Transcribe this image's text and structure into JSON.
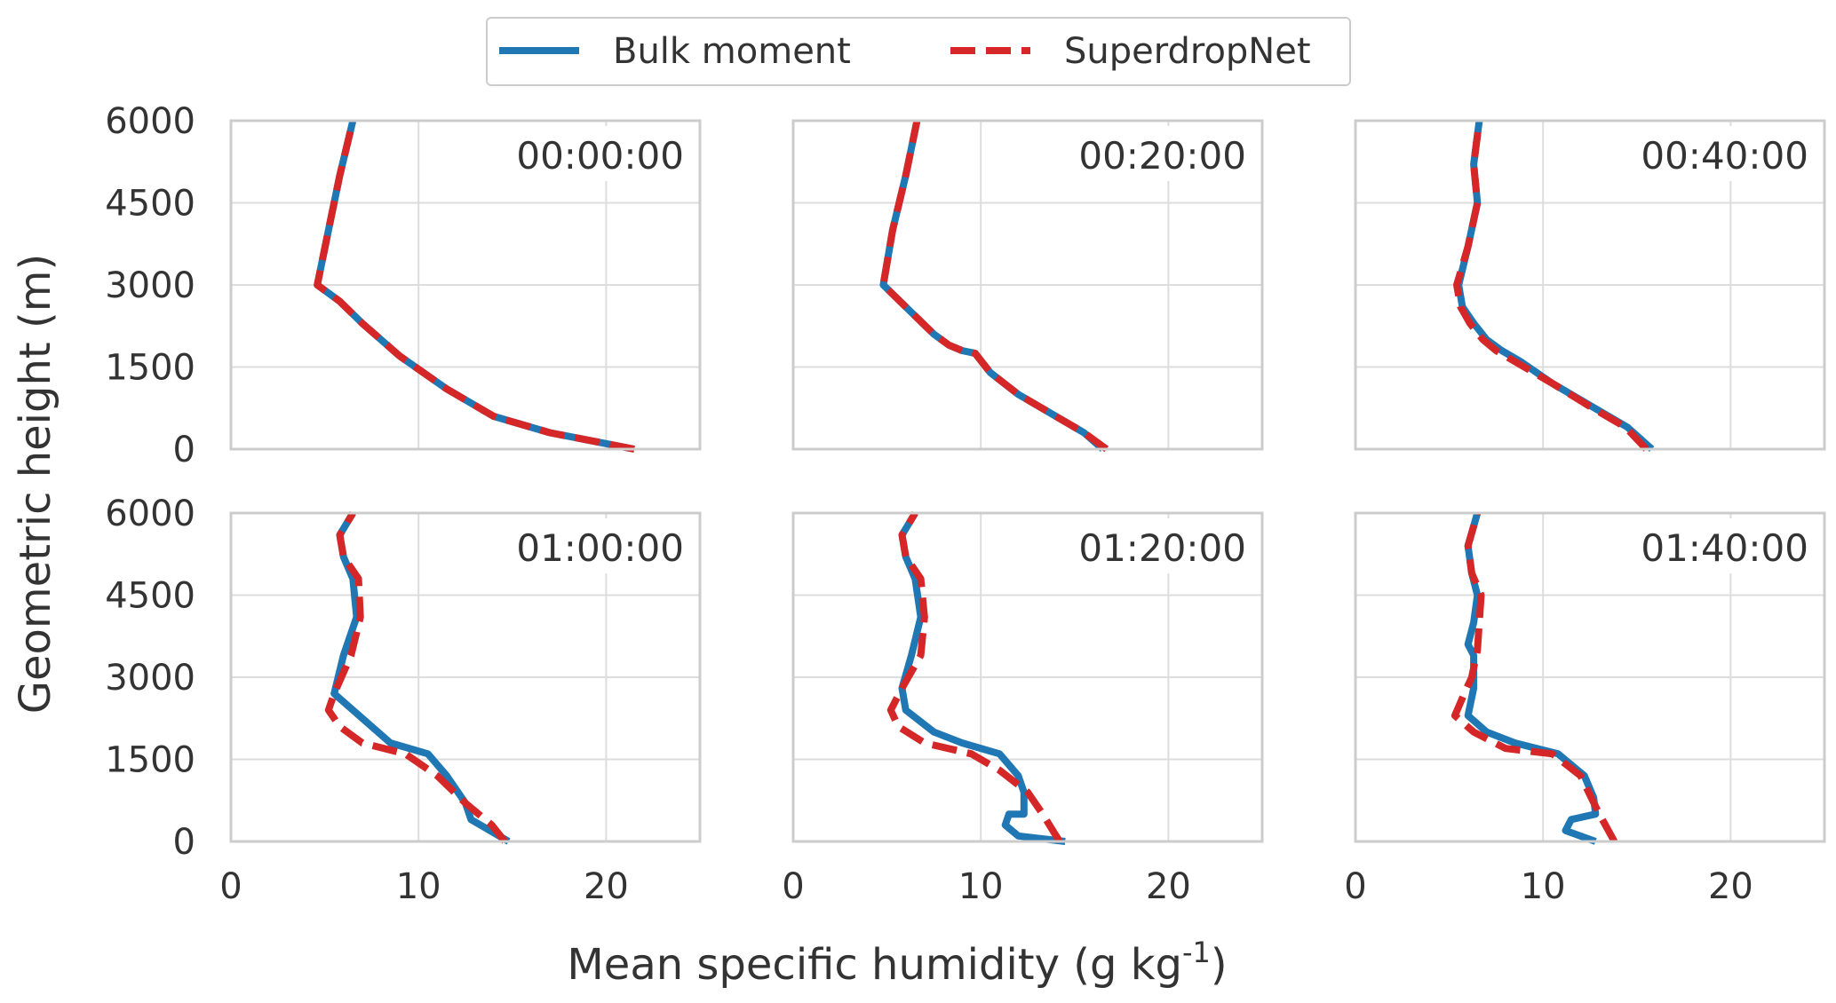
{
  "legend": {
    "placement": "top-center",
    "entries": [
      {
        "name": "Bulk moment",
        "color": "#1f77b4",
        "dash": "solid"
      },
      {
        "name": "SuperdropNet",
        "color": "#d62728",
        "dash": "dashed"
      }
    ]
  },
  "axes_text": {
    "ylabel": "Geometric height (m)",
    "xlabel_main": "Mean specific humidity (g kg",
    "xlabel_sup": "-1",
    "xlabel_close": ")"
  },
  "chart_data": {
    "type": "line",
    "layout": {
      "rows": 2,
      "cols": 3,
      "sharex": true,
      "sharey": true
    },
    "xlim": [
      0,
      25
    ],
    "ylim": [
      0,
      6000
    ],
    "xticks": [
      0,
      10,
      20
    ],
    "xtick_labels": [
      "0",
      "10",
      "20"
    ],
    "yticks": [
      0,
      1500,
      3000,
      4500,
      6000
    ],
    "ytick_labels": [
      "0",
      "1500",
      "3000",
      "4500",
      "6000"
    ],
    "grid": true,
    "panels": [
      {
        "title": "00:00:00",
        "series": [
          {
            "name": "Bulk moment",
            "points": [
              [
                21.5,
                0
              ],
              [
                20,
                100
              ],
              [
                17,
                300
              ],
              [
                14,
                600
              ],
              [
                11.5,
                1100
              ],
              [
                9,
                1700
              ],
              [
                7,
                2300
              ],
              [
                5.8,
                2700
              ],
              [
                4.6,
                3000
              ],
              [
                5.2,
                4000
              ],
              [
                5.8,
                5000
              ],
              [
                6.5,
                6000
              ]
            ]
          },
          {
            "name": "SuperdropNet",
            "points": [
              [
                21.5,
                0
              ],
              [
                20,
                100
              ],
              [
                17,
                300
              ],
              [
                14,
                600
              ],
              [
                11.5,
                1100
              ],
              [
                9,
                1700
              ],
              [
                7,
                2300
              ],
              [
                5.8,
                2700
              ],
              [
                4.6,
                3000
              ],
              [
                5.2,
                4000
              ],
              [
                5.8,
                5000
              ],
              [
                6.5,
                6000
              ]
            ]
          }
        ]
      },
      {
        "title": "00:20:00",
        "series": [
          {
            "name": "Bulk moment",
            "points": [
              [
                16.5,
                0
              ],
              [
                15.5,
                300
              ],
              [
                14,
                600
              ],
              [
                12,
                1000
              ],
              [
                10.5,
                1400
              ],
              [
                9.7,
                1750
              ],
              [
                9,
                1800
              ],
              [
                8.3,
                1900
              ],
              [
                7.5,
                2100
              ],
              [
                6,
                2600
              ],
              [
                4.8,
                3000
              ],
              [
                5.3,
                4000
              ],
              [
                6,
                5000
              ],
              [
                6.6,
                6000
              ]
            ]
          },
          {
            "name": "SuperdropNet",
            "points": [
              [
                16.7,
                0
              ],
              [
                15.5,
                300
              ],
              [
                14,
                600
              ],
              [
                12,
                1000
              ],
              [
                10.5,
                1400
              ],
              [
                9.7,
                1750
              ],
              [
                9,
                1800
              ],
              [
                8.3,
                1900
              ],
              [
                7.5,
                2100
              ],
              [
                6,
                2600
              ],
              [
                4.8,
                3000
              ],
              [
                5.3,
                4000
              ],
              [
                6,
                5000
              ],
              [
                6.6,
                6000
              ]
            ]
          }
        ]
      },
      {
        "title": "00:40:00",
        "series": [
          {
            "name": "Bulk moment",
            "points": [
              [
                15.8,
                0
              ],
              [
                14.5,
                400
              ],
              [
                12.5,
                800
              ],
              [
                10.5,
                1200
              ],
              [
                8.8,
                1600
              ],
              [
                7.8,
                1800
              ],
              [
                7,
                2000
              ],
              [
                6.3,
                2300
              ],
              [
                5.7,
                2600
              ],
              [
                5.5,
                3000
              ],
              [
                6,
                3700
              ],
              [
                6.5,
                4500
              ],
              [
                6.3,
                5200
              ],
              [
                6.6,
                6000
              ]
            ]
          },
          {
            "name": "SuperdropNet",
            "points": [
              [
                15.5,
                0
              ],
              [
                14.4,
                400
              ],
              [
                12.4,
                800
              ],
              [
                10.5,
                1200
              ],
              [
                8.5,
                1600
              ],
              [
                7.5,
                1800
              ],
              [
                6.8,
                2000
              ],
              [
                6.1,
                2300
              ],
              [
                5.6,
                2600
              ],
              [
                5.4,
                3000
              ],
              [
                6,
                3700
              ],
              [
                6.5,
                4500
              ],
              [
                6.3,
                5200
              ],
              [
                6.6,
                6000
              ]
            ]
          }
        ]
      },
      {
        "title": "01:00:00",
        "series": [
          {
            "name": "Bulk moment",
            "points": [
              [
                14.8,
                0
              ],
              [
                13.8,
                200
              ],
              [
                12.8,
                400
              ],
              [
                12.5,
                700
              ],
              [
                11.5,
                1200
              ],
              [
                10.5,
                1600
              ],
              [
                8.5,
                1800
              ],
              [
                7.5,
                2100
              ],
              [
                6.5,
                2400
              ],
              [
                5.5,
                2700
              ],
              [
                6,
                3400
              ],
              [
                6.7,
                4100
              ],
              [
                6.5,
                4800
              ],
              [
                6,
                5200
              ],
              [
                5.8,
                5600
              ],
              [
                6.5,
                6000
              ]
            ]
          },
          {
            "name": "SuperdropNet",
            "points": [
              [
                14.6,
                0
              ],
              [
                13.9,
                300
              ],
              [
                12.5,
                700
              ],
              [
                11,
                1200
              ],
              [
                9.3,
                1600
              ],
              [
                7,
                1800
              ],
              [
                5.8,
                2100
              ],
              [
                5.2,
                2400
              ],
              [
                5.5,
                2700
              ],
              [
                6.4,
                3400
              ],
              [
                6.9,
                4100
              ],
              [
                6.8,
                4800
              ],
              [
                6,
                5200
              ],
              [
                5.8,
                5600
              ],
              [
                6.5,
                6000
              ]
            ]
          }
        ]
      },
      {
        "title": "01:20:00",
        "series": [
          {
            "name": "Bulk moment",
            "points": [
              [
                14.5,
                0
              ],
              [
                12,
                100
              ],
              [
                11.3,
                300
              ],
              [
                11.5,
                500
              ],
              [
                12.3,
                500
              ],
              [
                12.3,
                900
              ],
              [
                12,
                1200
              ],
              [
                11,
                1600
              ],
              [
                9,
                1800
              ],
              [
                7.5,
                2000
              ],
              [
                6,
                2400
              ],
              [
                5.8,
                2800
              ],
              [
                6.3,
                3400
              ],
              [
                6.8,
                4100
              ],
              [
                6.5,
                4800
              ],
              [
                6,
                5200
              ],
              [
                5.8,
                5600
              ],
              [
                6.5,
                6000
              ]
            ]
          },
          {
            "name": "SuperdropNet",
            "points": [
              [
                14.2,
                0
              ],
              [
                13.3,
                500
              ],
              [
                12.5,
                900
              ],
              [
                11,
                1300
              ],
              [
                9.5,
                1600
              ],
              [
                7,
                1800
              ],
              [
                5.6,
                2100
              ],
              [
                5.2,
                2400
              ],
              [
                5.8,
                2800
              ],
              [
                6.8,
                3400
              ],
              [
                7,
                4100
              ],
              [
                6.8,
                4800
              ],
              [
                6,
                5200
              ],
              [
                5.8,
                5600
              ],
              [
                6.5,
                6000
              ]
            ]
          }
        ]
      },
      {
        "title": "01:40:00",
        "series": [
          {
            "name": "Bulk moment",
            "points": [
              [
                12.8,
                0
              ],
              [
                11.2,
                200
              ],
              [
                11.5,
                400
              ],
              [
                12.8,
                500
              ],
              [
                12.7,
                800
              ],
              [
                12.2,
                1200
              ],
              [
                10.8,
                1600
              ],
              [
                8.5,
                1800
              ],
              [
                7,
                2000
              ],
              [
                6,
                2300
              ],
              [
                6.3,
                2800
              ],
              [
                6.3,
                3400
              ],
              [
                6,
                3600
              ],
              [
                6.3,
                4000
              ],
              [
                6.5,
                4500
              ],
              [
                6.2,
                4900
              ],
              [
                6,
                5400
              ],
              [
                6.5,
                6000
              ]
            ]
          },
          {
            "name": "SuperdropNet",
            "points": [
              [
                13.8,
                0
              ],
              [
                13,
                500
              ],
              [
                12,
                1200
              ],
              [
                10.5,
                1600
              ],
              [
                8,
                1700
              ],
              [
                6.3,
                2000
              ],
              [
                5.3,
                2300
              ],
              [
                5.8,
                2700
              ],
              [
                6.2,
                3000
              ],
              [
                6.5,
                3500
              ],
              [
                6.6,
                4000
              ],
              [
                6.7,
                4500
              ],
              [
                6.2,
                4900
              ],
              [
                6,
                5400
              ],
              [
                6.5,
                6000
              ]
            ]
          }
        ]
      }
    ]
  }
}
